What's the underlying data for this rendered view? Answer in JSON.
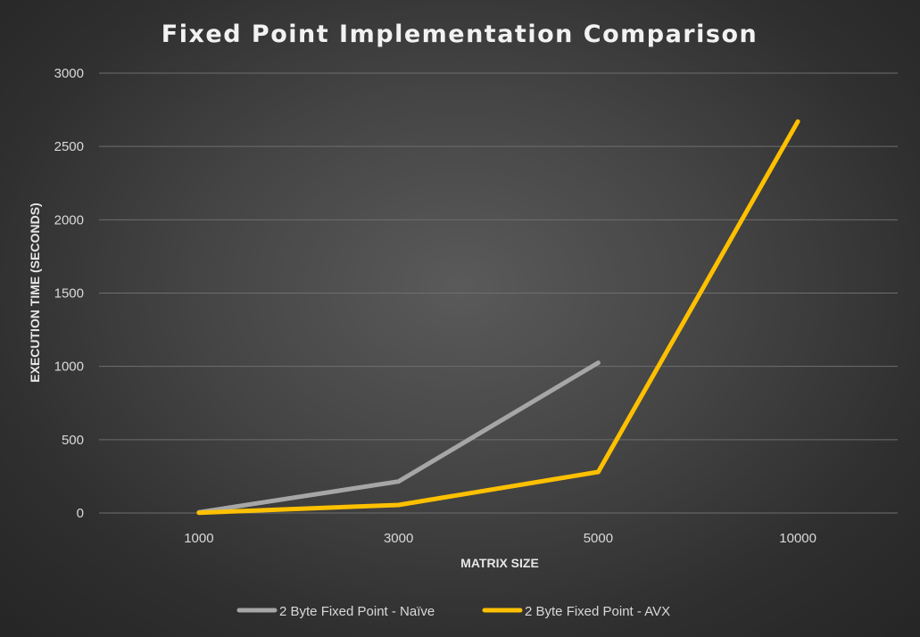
{
  "chart_data": {
    "type": "line",
    "title": "Fixed Point Implementation Comparison",
    "xlabel": "MATRIX SIZE",
    "ylabel": "EXECUTION TIME (SECONDS)",
    "categories": [
      "1000",
      "3000",
      "5000",
      "10000"
    ],
    "ylim": [
      0,
      3000
    ],
    "yticks": [
      0,
      500,
      1000,
      1500,
      2000,
      2500,
      3000
    ],
    "grid": true,
    "legend_position": "bottom",
    "series": [
      {
        "name": "2 Byte Fixed Point - Naïve",
        "color": "#a6a6a6",
        "values": [
          5,
          215,
          1025,
          null
        ]
      },
      {
        "name": "2 Byte Fixed Point - AVX",
        "color": "#ffc000",
        "values": [
          2,
          55,
          280,
          2670
        ]
      }
    ]
  }
}
